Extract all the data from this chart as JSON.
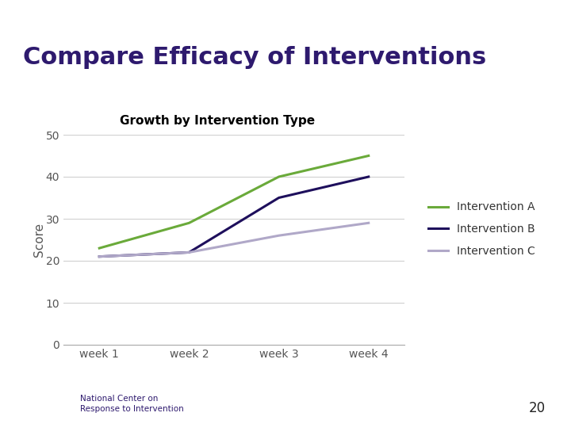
{
  "title": "Compare Efficacy of Interventions",
  "subtitle": "Growth by Intervention Type",
  "ylabel": "Score",
  "weeks": [
    "week 1",
    "week 2",
    "week 3",
    "week 4"
  ],
  "intervention_A": [
    23,
    29,
    40,
    45
  ],
  "intervention_B": [
    21,
    22,
    35,
    40
  ],
  "intervention_C": [
    21,
    22,
    26,
    29
  ],
  "color_A": "#6aaa3a",
  "color_B": "#1e0f5c",
  "color_C": "#b0a8c8",
  "ylim": [
    0,
    50
  ],
  "yticks": [
    0,
    10,
    20,
    30,
    40,
    50
  ],
  "legend_labels": [
    "Intervention A",
    "Intervention B",
    "Intervention C"
  ],
  "title_color": "#2e1a6e",
  "subtitle_color": "#000000",
  "header_purple": "#8878b0",
  "header_green": "#b5d07a",
  "footer_purple": "#8878b0",
  "rule_color": "#7a6a8a",
  "page_number": "20",
  "background_color": "#ffffff",
  "line_width": 2.2,
  "grid_color": "#d0d0d0",
  "tick_color": "#555555",
  "footer_text_color": "#2e1a6e",
  "page_num_color": "#222222"
}
